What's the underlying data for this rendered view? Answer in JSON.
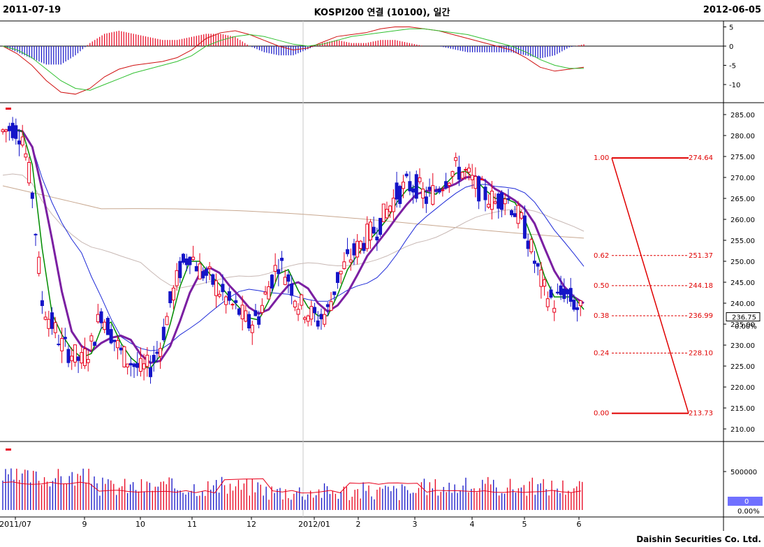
{
  "header": {
    "start_date": "2011-07-19",
    "title": "KOSPI200 연결 (10100), 일간",
    "end_date": "2012-06-05"
  },
  "footer": {
    "company": "Daishin Securities Co. Ltd."
  },
  "colors": {
    "up": "#e8001c",
    "down": "#1414c8",
    "ma_fast": "#008c00",
    "ma_mid": "#7b1fa2",
    "ma_60": "#1e2ad8",
    "ma_120": "#c8b8b4",
    "ma_200": "#c8a890",
    "fib": "#e00000",
    "macd_red": "#d01010",
    "macd_green": "#30c030"
  },
  "chart_data": [
    {
      "type": "line",
      "panel": "macd-oscillator",
      "title": "",
      "y_ticks": [
        "5",
        "0",
        "-5",
        "-10"
      ],
      "ylim": [
        -13,
        6
      ],
      "series": [
        {
          "name": "",
          "values": [
            0,
            -2,
            -5,
            -9,
            -12,
            -12.5,
            -11,
            -8,
            -6,
            -5,
            -4.5,
            -4,
            -3,
            -1,
            2,
            3.5,
            4,
            3,
            1.5,
            0,
            -1,
            -0.5,
            1,
            2.5,
            3,
            3.5,
            4.5,
            5,
            5,
            4.5,
            4,
            3,
            2,
            1,
            0,
            -1,
            -3,
            -5.5,
            -6.5,
            -6,
            -5.5
          ]
        },
        {
          "name": "",
          "values": [
            0,
            -1,
            -3,
            -6,
            -9,
            -11,
            -11.5,
            -10,
            -8.5,
            -7,
            -6,
            -5,
            -4,
            -2.5,
            0,
            1.5,
            2.5,
            3,
            2.5,
            1.5,
            0.5,
            0,
            0.5,
            1.5,
            2.5,
            3,
            3.5,
            4,
            4.5,
            4.5,
            4,
            3.5,
            3,
            2,
            1,
            0,
            -1.5,
            -3.5,
            -5,
            -5.8,
            -5.8
          ]
        }
      ]
    },
    {
      "type": "candlestick",
      "panel": "price",
      "y_ticks": [
        "285.00",
        "280.00",
        "275.00",
        "270.00",
        "265.00",
        "260.00",
        "255.00",
        "250.00",
        "245.00",
        "240.00",
        "235.00",
        "230.00",
        "225.00",
        "220.00",
        "215.00",
        "210.00"
      ],
      "ylim": [
        208,
        289
      ],
      "current_price": "236.75",
      "current_change": "0.00%",
      "x_ticks": [
        "2011/07",
        "9",
        "10",
        "11",
        "12",
        "2012/01",
        "2",
        "3",
        "4",
        "5",
        "6"
      ],
      "close_path": [
        281,
        282,
        280,
        266,
        240,
        235,
        230,
        228,
        226,
        230,
        238,
        233,
        228,
        226,
        224,
        225,
        230,
        240,
        248,
        252,
        248,
        246,
        243,
        240,
        238,
        235,
        237,
        244,
        250,
        246,
        240,
        238,
        236,
        238,
        246,
        250,
        253,
        256,
        258,
        262,
        266,
        268,
        268,
        265,
        267,
        270,
        272,
        271,
        268,
        266,
        264,
        266,
        262,
        258,
        250,
        243,
        240,
        243,
        240,
        237
      ],
      "fibonacci": [
        {
          "ratio": "1.00",
          "price": "274.64",
          "value": 274.64
        },
        {
          "ratio": "0.62",
          "price": "251.37",
          "value": 251.37
        },
        {
          "ratio": "0.50",
          "price": "244.18",
          "value": 244.18
        },
        {
          "ratio": "0.38",
          "price": "236.99",
          "value": 236.99
        },
        {
          "ratio": "0.24",
          "price": "228.10",
          "value": 228.1
        },
        {
          "ratio": "0.00",
          "price": "213.73",
          "value": 213.73
        }
      ]
    },
    {
      "type": "bar",
      "panel": "volume",
      "y_ticks": [
        "500000"
      ],
      "current_volume": "0",
      "current_change": "0.00%"
    }
  ]
}
